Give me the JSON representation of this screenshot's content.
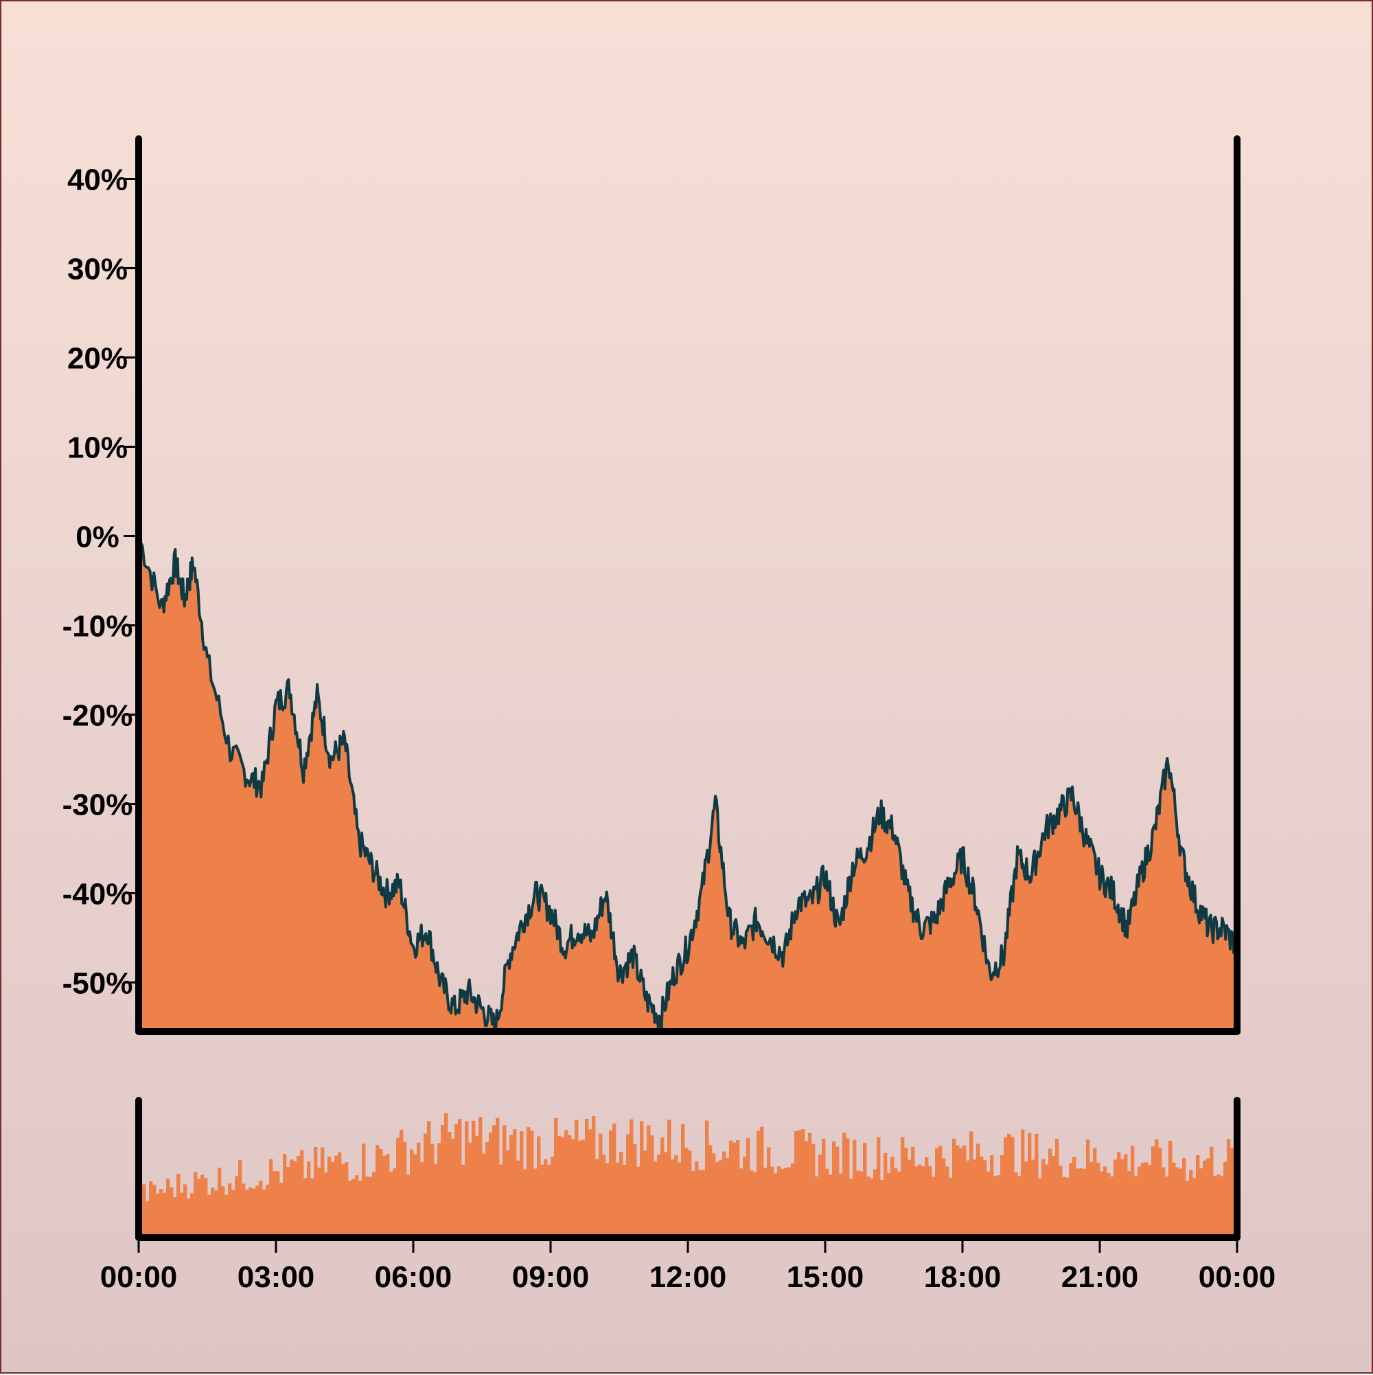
{
  "chart_data": {
    "type": "area",
    "title": "",
    "xlabel": "",
    "ylabel": "",
    "colors": {
      "area": "#ed8149",
      "line": "#0f3a44",
      "axis": "#000000"
    },
    "grid": false,
    "legend": "none",
    "price_panel": {
      "y_ticks": [
        40,
        30,
        20,
        10,
        0,
        -10,
        -20,
        -30,
        -40,
        -50
      ],
      "y_tick_labels": [
        "40%",
        "30%",
        "20%",
        "10%",
        "0%",
        "-10%",
        "-20%",
        "-30%",
        "-40%",
        "-50%"
      ],
      "ylim": [
        -55.5,
        44.5
      ],
      "x_hours": [
        0,
        0.5,
        0.8,
        1.0,
        1.2,
        1.5,
        2.0,
        2.4,
        2.7,
        3.0,
        3.3,
        3.6,
        3.9,
        4.2,
        4.5,
        4.8,
        5.1,
        5.4,
        5.7,
        6.0,
        6.3,
        6.6,
        6.9,
        7.2,
        7.5,
        7.8,
        8.1,
        8.4,
        8.7,
        9.0,
        9.3,
        9.6,
        9.9,
        10.2,
        10.5,
        10.8,
        11.1,
        11.4,
        11.7,
        12.0,
        12.3,
        12.6,
        12.9,
        13.2,
        13.5,
        13.8,
        14.1,
        14.4,
        14.7,
        15.0,
        15.3,
        15.6,
        15.9,
        16.2,
        16.5,
        16.8,
        17.1,
        17.4,
        17.7,
        18.0,
        18.3,
        18.6,
        18.9,
        19.2,
        19.5,
        19.8,
        20.1,
        20.4,
        20.7,
        21.0,
        21.3,
        21.6,
        21.9,
        22.2,
        22.5,
        22.8,
        23.1,
        23.4,
        23.7,
        24.0
      ],
      "values": [
        0,
        -8,
        -3,
        -7,
        -3,
        -14,
        -24,
        -27,
        -28,
        -19,
        -17,
        -26,
        -18,
        -25,
        -23,
        -34,
        -37,
        -40,
        -39,
        -46,
        -44,
        -50,
        -53,
        -51,
        -53,
        -55,
        -47,
        -43,
        -40,
        -42,
        -46,
        -44,
        -45,
        -40,
        -49,
        -47,
        -52,
        -54,
        -49,
        -46,
        -40,
        -30,
        -43,
        -46,
        -43,
        -45,
        -47,
        -41,
        -41,
        -38,
        -44,
        -37,
        -35,
        -31,
        -33,
        -40,
        -44,
        -43,
        -39,
        -36,
        -41,
        -49,
        -47,
        -36,
        -38,
        -33,
        -31,
        -29,
        -34,
        -38,
        -40,
        -44,
        -38,
        -33,
        -25,
        -36,
        -41,
        -44,
        -44,
        -46
      ]
    },
    "volume_panel": {
      "x_ticks": [
        "00:00",
        "03:00",
        "06:00",
        "09:00",
        "12:00",
        "15:00",
        "18:00",
        "21:00",
        "00:00"
      ],
      "envelope_hours": [
        0,
        1,
        2,
        3,
        4,
        5,
        6,
        7,
        8,
        9,
        10,
        11,
        12,
        13,
        14,
        15,
        16,
        17,
        18,
        19,
        20,
        21,
        22,
        23,
        24
      ],
      "envelope_levels": [
        0.35,
        0.45,
        0.5,
        0.55,
        0.6,
        0.65,
        0.75,
        0.85,
        0.8,
        0.78,
        0.8,
        0.82,
        0.78,
        0.75,
        0.72,
        0.7,
        0.68,
        0.67,
        0.7,
        0.72,
        0.68,
        0.66,
        0.65,
        0.62,
        0.68
      ]
    }
  }
}
